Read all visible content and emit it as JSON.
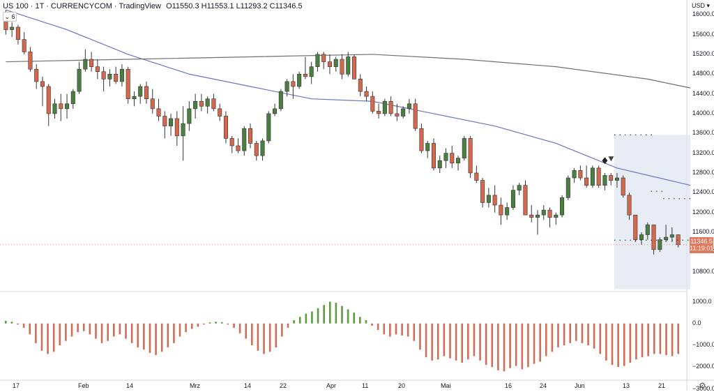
{
  "header": {
    "symbol": "US 100 · 1T · CURRENCYCOM · TradingView",
    "ohlc": "O11550.3 H11553.1 L11293.2 C11346.5",
    "indicator_badge": "⌄ 6"
  },
  "currency": "USD ▾",
  "price_tag": {
    "price": "11346.5",
    "countdown": "11:19:01"
  },
  "colors": {
    "up": "#4b7f3f",
    "down": "#d4684c",
    "ma_short": "#6c74c4",
    "ma_long": "#707070",
    "osc_up": "#5e9b3d",
    "osc_down": "#cf6e57",
    "zone": "#dfe6f2"
  },
  "chart_data": [
    {
      "type": "candlestick",
      "ylim": [
        10400,
        16300
      ],
      "y_ticks": [
        "16000.0",
        "15600.0",
        "15200.0",
        "14800.0",
        "14400.0",
        "14000.0",
        "13600.0",
        "13200.0",
        "12800.0",
        "12400.0",
        "12000.0",
        "11600.0",
        "11200.0",
        "10800.0"
      ],
      "x_ticks": [
        "17",
        "Feb",
        "14",
        "Mrz",
        "14",
        "22",
        "Apr",
        "11",
        "20",
        "Mai",
        "16",
        "24",
        "Jun",
        "13",
        "21"
      ],
      "candles": [
        [
          15950,
          16100,
          15600,
          15700
        ],
        [
          15700,
          15850,
          15550,
          15750
        ],
        [
          15750,
          15800,
          15400,
          15500
        ],
        [
          15500,
          15650,
          15200,
          15250
        ],
        [
          15250,
          15350,
          14850,
          14900
        ],
        [
          14900,
          15000,
          14500,
          14650
        ],
        [
          14650,
          14750,
          14150,
          14550
        ],
        [
          14550,
          14600,
          13750,
          14000
        ],
        [
          14000,
          14300,
          13900,
          14200
        ],
        [
          14200,
          14400,
          13850,
          14100
        ],
        [
          14100,
          14400,
          13900,
          14200
        ],
        [
          14200,
          14500,
          14100,
          14450
        ],
        [
          14450,
          15050,
          14400,
          14900
        ],
        [
          14900,
          15300,
          14850,
          15100
        ],
        [
          15100,
          15250,
          14850,
          14950
        ],
        [
          14950,
          15100,
          14700,
          14850
        ],
        [
          14850,
          14950,
          14450,
          14700
        ],
        [
          14700,
          14900,
          14550,
          14800
        ],
        [
          14800,
          14950,
          14600,
          14650
        ],
        [
          14650,
          15000,
          14550,
          14900
        ],
        [
          14900,
          14950,
          14200,
          14300
        ],
        [
          14300,
          14450,
          14150,
          14350
        ],
        [
          14350,
          14600,
          14200,
          14550
        ],
        [
          14550,
          14650,
          14200,
          14300
        ],
        [
          14300,
          14500,
          14000,
          14100
        ],
        [
          14100,
          14300,
          13850,
          13950
        ],
        [
          13950,
          14050,
          13500,
          13750
        ],
        [
          13750,
          14000,
          13550,
          13900
        ],
        [
          13900,
          14050,
          13350,
          13550
        ],
        [
          13550,
          14150,
          13050,
          13800
        ],
        [
          13800,
          14250,
          13650,
          14100
        ],
        [
          14100,
          14400,
          13900,
          14250
        ],
        [
          14250,
          14400,
          14050,
          14150
        ],
        [
          14150,
          14350,
          14000,
          14300
        ],
        [
          14300,
          14400,
          14050,
          14100
        ],
        [
          14100,
          14200,
          13850,
          13950
        ],
        [
          13950,
          14050,
          13400,
          13500
        ],
        [
          13500,
          13550,
          13200,
          13350
        ],
        [
          13350,
          13500,
          13200,
          13250
        ],
        [
          13250,
          13750,
          13150,
          13700
        ],
        [
          13700,
          13800,
          13300,
          13400
        ],
        [
          13400,
          13450,
          13050,
          13150
        ],
        [
          13150,
          13500,
          13050,
          13450
        ],
        [
          13450,
          14050,
          13400,
          14000
        ],
        [
          14000,
          14200,
          13950,
          14100
        ],
        [
          14100,
          14500,
          14050,
          14450
        ],
        [
          14450,
          14700,
          14350,
          14650
        ],
        [
          14650,
          14800,
          14300,
          14550
        ],
        [
          14550,
          14850,
          14500,
          14800
        ],
        [
          14800,
          15150,
          14700,
          14750
        ],
        [
          14750,
          15050,
          14600,
          14950
        ],
        [
          14950,
          15250,
          14850,
          15200
        ],
        [
          15200,
          15250,
          14900,
          15050
        ],
        [
          15050,
          15200,
          14800,
          14950
        ],
        [
          14950,
          15150,
          14850,
          15100
        ],
        [
          15100,
          15200,
          14700,
          14800
        ],
        [
          14800,
          15250,
          14750,
          15150
        ],
        [
          15150,
          15200,
          14700,
          14700
        ],
        [
          14700,
          14800,
          14350,
          14450
        ],
        [
          14450,
          14550,
          14250,
          14350
        ],
        [
          14350,
          14450,
          14000,
          14050
        ],
        [
          14050,
          14200,
          13900,
          14000
        ],
        [
          14000,
          14300,
          13950,
          14250
        ],
        [
          14250,
          14350,
          13950,
          14000
        ],
        [
          14000,
          14200,
          13850,
          13950
        ],
        [
          13950,
          14150,
          13900,
          14100
        ],
        [
          14100,
          14300,
          14000,
          14200
        ],
        [
          14200,
          14300,
          13650,
          13700
        ],
        [
          13700,
          13800,
          13200,
          13250
        ],
        [
          13250,
          13450,
          13100,
          13400
        ],
        [
          13400,
          13500,
          12850,
          12900
        ],
        [
          12900,
          13150,
          12800,
          13050
        ],
        [
          13050,
          13300,
          12900,
          13200
        ],
        [
          13200,
          13350,
          12900,
          13000
        ],
        [
          13000,
          13150,
          12850,
          13100
        ],
        [
          13100,
          13550,
          13050,
          13500
        ],
        [
          13500,
          13550,
          12700,
          12800
        ],
        [
          12800,
          12950,
          12600,
          12650
        ],
        [
          12650,
          12700,
          12100,
          12200
        ],
        [
          12200,
          12500,
          12100,
          12350
        ],
        [
          12350,
          12550,
          12000,
          12150
        ],
        [
          12150,
          12300,
          11750,
          11950
        ],
        [
          11950,
          12200,
          11850,
          12100
        ],
        [
          12100,
          12550,
          12050,
          12450
        ],
        [
          12450,
          12600,
          12350,
          12550
        ],
        [
          12550,
          12650,
          11950,
          11950
        ],
        [
          11950,
          12150,
          11800,
          11900
        ],
        [
          11900,
          12050,
          11550,
          11950
        ],
        [
          11950,
          12150,
          11850,
          12050
        ],
        [
          12050,
          12100,
          11700,
          11900
        ],
        [
          11900,
          12000,
          11750,
          11950
        ],
        [
          11950,
          12350,
          11900,
          12300
        ],
        [
          12300,
          12750,
          12250,
          12700
        ],
        [
          12700,
          12900,
          12600,
          12850
        ],
        [
          12850,
          12950,
          12650,
          12700
        ],
        [
          12700,
          12950,
          12500,
          12550
        ],
        [
          12550,
          12950,
          12500,
          12900
        ],
        [
          12900,
          12950,
          12500,
          12550
        ],
        [
          12550,
          12800,
          12450,
          12750
        ],
        [
          12750,
          12800,
          12550,
          12650
        ],
        [
          12650,
          12800,
          12500,
          12700
        ],
        [
          12700,
          12750,
          12300,
          12350
        ],
        [
          12350,
          12400,
          11850,
          11950
        ],
        [
          11950,
          11950,
          11400,
          11450
        ],
        [
          11450,
          11600,
          11350,
          11550
        ],
        [
          11550,
          11800,
          11450,
          11750
        ],
        [
          11750,
          11750,
          11150,
          11250
        ],
        [
          11250,
          11500,
          11200,
          11450
        ],
        [
          11450,
          11750,
          11400,
          11500
        ],
        [
          11500,
          11700,
          11400,
          11550
        ],
        [
          11550,
          11553,
          11293,
          11347
        ]
      ],
      "ma_short": [
        [
          0,
          16100
        ],
        [
          10,
          15700
        ],
        [
          20,
          15200
        ],
        [
          30,
          14800
        ],
        [
          40,
          14550
        ],
        [
          50,
          14300
        ],
        [
          60,
          14250
        ],
        [
          70,
          14000
        ],
        [
          80,
          13750
        ],
        [
          90,
          13400
        ],
        [
          100,
          12900
        ],
        [
          112,
          12550
        ]
      ],
      "ma_long": [
        [
          0,
          15050
        ],
        [
          20,
          15100
        ],
        [
          40,
          15150
        ],
        [
          60,
          15200
        ],
        [
          75,
          15100
        ],
        [
          90,
          14950
        ],
        [
          105,
          14700
        ],
        [
          112,
          14520
        ]
      ],
      "zone": {
        "x0": 100,
        "x1": 112,
        "y_top": 13570,
        "y_bottom": 10450
      },
      "dotted_levels": [
        {
          "x0": 100,
          "x1": 106,
          "y": 13570
        },
        {
          "x0": 106,
          "x1": 108,
          "y": 12430
        },
        {
          "x0": 108,
          "x1": 112,
          "y": 12280
        },
        {
          "x0": 100,
          "x1": 112,
          "y": 11440
        }
      ]
    },
    {
      "type": "histogram",
      "ylim": [
        -2600,
        1400
      ],
      "y_ticks": [
        "1000.0",
        "0.0",
        "−1000.0",
        "−2000.0",
        "−3000.0"
      ],
      "values": [
        120,
        80,
        -50,
        -200,
        -500,
        -900,
        -1250,
        -1400,
        -1300,
        -1000,
        -800,
        -600,
        -400,
        -350,
        -500,
        -700,
        -900,
        -800,
        -600,
        -500,
        -700,
        -900,
        -1100,
        -1200,
        -1350,
        -1450,
        -1300,
        -1100,
        -900,
        -600,
        -400,
        -250,
        -150,
        -50,
        50,
        80,
        60,
        -50,
        -200,
        -450,
        -700,
        -1000,
        -1250,
        -1400,
        -1300,
        -1100,
        -600,
        -200,
        150,
        300,
        450,
        550,
        700,
        850,
        1000,
        950,
        800,
        650,
        500,
        300,
        150,
        -100,
        -300,
        -500,
        -600,
        -500,
        -550,
        -600,
        -800,
        -1200,
        -1550,
        -1700,
        -1650,
        -1500,
        -1600,
        -1700,
        -1800,
        -1650,
        -1500,
        -1700,
        -1900,
        -2000,
        -2150,
        -2200,
        -2050,
        -1950,
        -2100,
        -2000,
        -1850,
        -1750,
        -1500,
        -1300,
        -1100,
        -1000,
        -900,
        -800,
        -900,
        -1000,
        -1150,
        -1400,
        -1700,
        -1900,
        -2000,
        -1950,
        -1800,
        -1650,
        -1550,
        -1500,
        -1400,
        -1400,
        -1450,
        -1500,
        -1400
      ]
    }
  ]
}
